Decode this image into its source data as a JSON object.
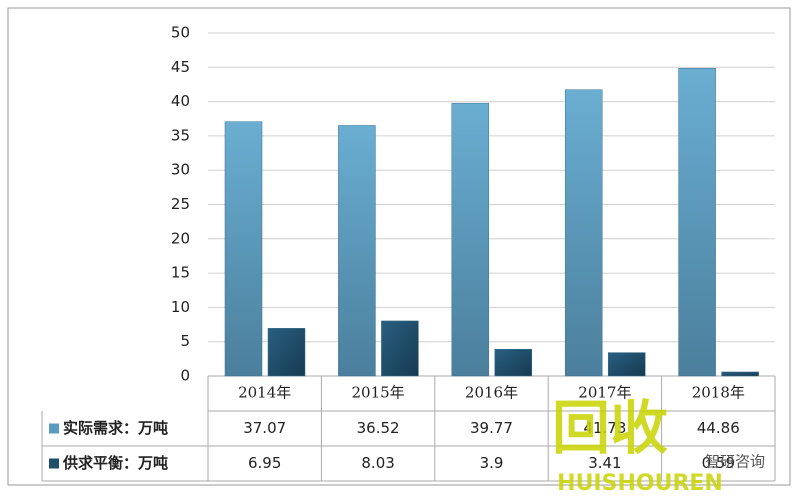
{
  "chart_data": {
    "type": "bar",
    "categories": [
      "2014年",
      "2015年",
      "2016年",
      "2017年",
      "2018年"
    ],
    "series": [
      {
        "name": "实际需求：万吨",
        "color": "#5a9cc0",
        "values": [
          37.07,
          36.52,
          39.77,
          41.73,
          44.86
        ]
      },
      {
        "name": "供求平衡：万吨",
        "color": "#1f4e6b",
        "values": [
          6.95,
          8.03,
          3.9,
          3.41,
          0.59
        ]
      }
    ],
    "ylim": [
      0,
      50
    ],
    "yticks": [
      0,
      5,
      10,
      15,
      20,
      25,
      30,
      35,
      40,
      45,
      50
    ],
    "grid": true,
    "annotations": [
      "回收",
      "HUISHOUREN",
      "智研咨询"
    ]
  }
}
